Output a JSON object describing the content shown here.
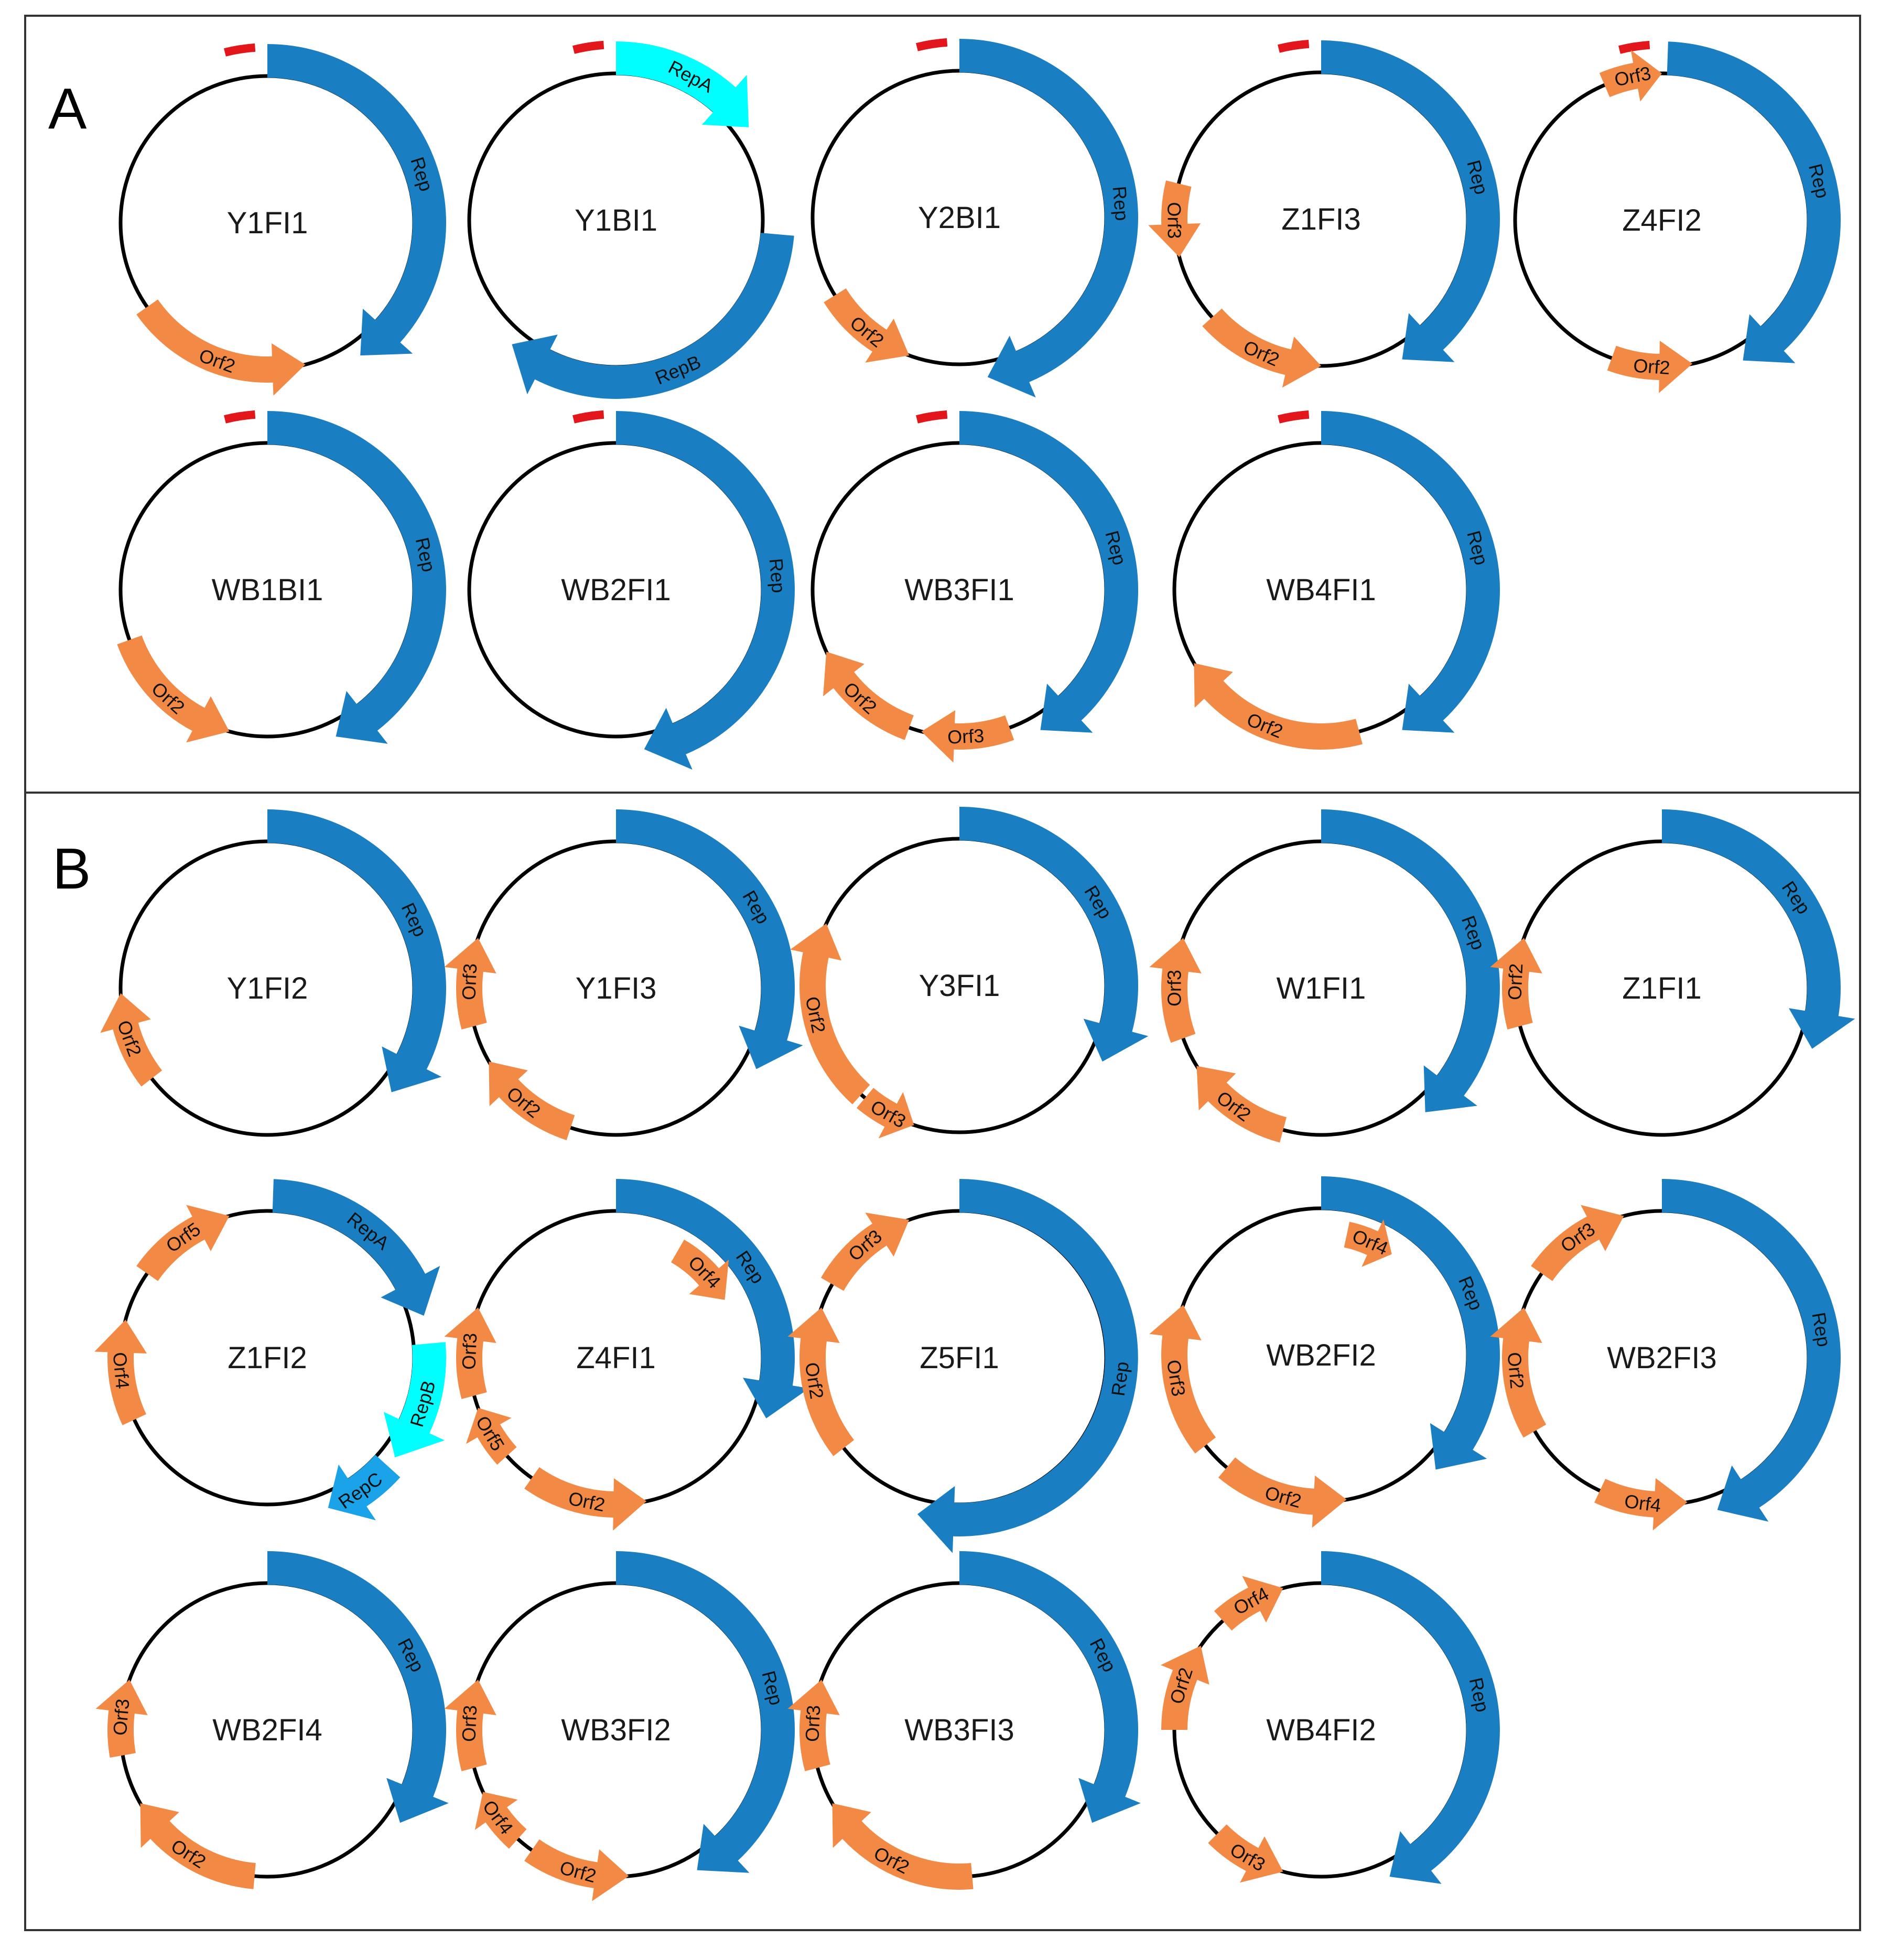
{
  "colors": {
    "rep": "#1a7ec2",
    "rep_light": "#00ffff",
    "rep_c": "#1aa3e8",
    "orf": "#f28a45",
    "origin": "#e3161b",
    "backbone": "#000000",
    "frame": "#333333"
  },
  "panels": [
    {
      "letter": "A",
      "plasmids": [
        {
          "name": "Y1FI1",
          "origin": true,
          "genes": [
            {
              "label": "Rep",
              "kind": "rep",
              "start": 0,
              "end": 145,
              "dir": 1
            },
            {
              "label": "Orf2",
              "kind": "orf",
              "start": 165,
              "end": 235,
              "dir": -1
            }
          ]
        },
        {
          "name": "Y1BI1",
          "origin": true,
          "genes": [
            {
              "label": "RepA",
              "kind": "rep_light",
              "start": 0,
              "end": 55,
              "dir": 1
            },
            {
              "label": "RepB",
              "kind": "rep",
              "start": 95,
              "end": 220,
              "dir": 1
            }
          ]
        },
        {
          "name": "Y2BI1",
          "origin": true,
          "genes": [
            {
              "label": "Rep",
              "kind": "rep",
              "start": 0,
              "end": 170,
              "dir": 1
            },
            {
              "label": "Orf2",
              "kind": "orf",
              "start": 200,
              "end": 238,
              "dir": -1
            }
          ]
        },
        {
          "name": "Z1FI3",
          "origin": true,
          "genes": [
            {
              "label": "Rep",
              "kind": "rep",
              "start": 0,
              "end": 150,
              "dir": 1
            },
            {
              "label": "Orf2",
              "kind": "orf",
              "start": 180,
              "end": 228,
              "dir": -1
            },
            {
              "label": "Orf3",
              "kind": "orf",
              "start": 255,
              "end": 284,
              "dir": -1
            }
          ]
        },
        {
          "name": "Z4FI2",
          "origin": true,
          "genes": [
            {
              "label": "Orf3",
              "kind": "orf",
              "start": 337,
              "end": 360,
              "dir": 1
            },
            {
              "label": "Rep",
              "kind": "rep",
              "start": 2,
              "end": 150,
              "dir": 1
            },
            {
              "label": "Orf2",
              "kind": "orf",
              "start": 168,
              "end": 200,
              "dir": -1
            }
          ]
        },
        {
          "name": "WB1BI1",
          "origin": true,
          "genes": [
            {
              "label": "Rep",
              "kind": "rep",
              "start": 0,
              "end": 155,
              "dir": 1
            },
            {
              "label": "Orf2",
              "kind": "orf",
              "start": 195,
              "end": 250,
              "dir": -1
            }
          ]
        },
        {
          "name": "WB2FI1",
          "origin": true,
          "genes": [
            {
              "label": "Rep",
              "kind": "rep",
              "start": 0,
              "end": 170,
              "dir": 1
            }
          ]
        },
        {
          "name": "WB3FI1",
          "origin": true,
          "genes": [
            {
              "label": "Rep",
              "kind": "rep",
              "start": 0,
              "end": 150,
              "dir": 1
            },
            {
              "label": "Orf3",
              "kind": "orf",
              "start": 160,
              "end": 195,
              "dir": 1
            },
            {
              "label": "Orf2",
              "kind": "orf",
              "start": 200,
              "end": 245,
              "dir": 1
            }
          ]
        },
        {
          "name": "WB4FI1",
          "origin": true,
          "genes": [
            {
              "label": "Rep",
              "kind": "rep",
              "start": 0,
              "end": 150,
              "dir": 1
            },
            {
              "label": "Orf2",
              "kind": "orf",
              "start": 165,
              "end": 240,
              "dir": 1
            }
          ]
        }
      ]
    },
    {
      "letter": "B",
      "plasmids": [
        {
          "name": "Y1FI2",
          "origin": false,
          "genes": [
            {
              "label": "Rep",
              "kind": "rep",
              "start": 0,
              "end": 130,
              "dir": 1
            },
            {
              "label": "Orf2",
              "kind": "orf",
              "start": 232,
              "end": 268,
              "dir": 1
            }
          ]
        },
        {
          "name": "Y1FI3",
          "origin": false,
          "genes": [
            {
              "label": "Rep",
              "kind": "rep",
              "start": 0,
              "end": 120,
              "dir": 1
            },
            {
              "label": "Orf2",
              "kind": "orf",
              "start": 198,
              "end": 240,
              "dir": 1
            },
            {
              "label": "Orf3",
              "kind": "orf",
              "start": 255,
              "end": 290,
              "dir": 1
            }
          ]
        },
        {
          "name": "Y3FI1",
          "origin": false,
          "genes": [
            {
              "label": "Rep",
              "kind": "rep",
              "start": 0,
              "end": 118,
              "dir": 1
            },
            {
              "label": "Orf3",
              "kind": "orf",
              "start": 198,
              "end": 220,
              "dir": -1
            },
            {
              "label": "Orf2",
              "kind": "orf",
              "start": 222,
              "end": 295,
              "dir": 1
            }
          ]
        },
        {
          "name": "W1FI1",
          "origin": false,
          "genes": [
            {
              "label": "Rep",
              "kind": "rep",
              "start": 0,
              "end": 140,
              "dir": 1
            },
            {
              "label": "Orf2",
              "kind": "orf",
              "start": 195,
              "end": 238,
              "dir": 1
            },
            {
              "label": "Orf3",
              "kind": "orf",
              "start": 250,
              "end": 290,
              "dir": 1
            }
          ]
        },
        {
          "name": "Z1FI1",
          "origin": false,
          "genes": [
            {
              "label": "Rep",
              "kind": "rep",
              "start": 0,
              "end": 112,
              "dir": 1
            },
            {
              "label": "Orf2",
              "kind": "orf",
              "start": 255,
              "end": 290,
              "dir": 1
            }
          ]
        },
        {
          "name": "Z1FI2",
          "origin": false,
          "genes": [
            {
              "label": "RepA",
              "kind": "rep",
              "start": 2,
              "end": 75,
              "dir": 1
            },
            {
              "label": "RepB",
              "kind": "rep_light",
              "start": 85,
              "end": 128,
              "dir": 1
            },
            {
              "label": "RepC",
              "kind": "rep_c",
              "start": 132,
              "end": 158,
              "dir": 1
            },
            {
              "label": "Orf4",
              "kind": "orf",
              "start": 245,
              "end": 285,
              "dir": 1
            },
            {
              "label": "Orf5",
              "kind": "orf",
              "start": 305,
              "end": 345,
              "dir": 1
            }
          ]
        },
        {
          "name": "Z4FI1",
          "origin": false,
          "genes": [
            {
              "label": "Rep",
              "kind": "rep",
              "start": 0,
              "end": 112,
              "dir": 1
            },
            {
              "label": "Orf4",
              "kind": "orf",
              "start": 30,
              "end": 62,
              "dir": 1,
              "inner": true
            },
            {
              "label": "Orf2",
              "kind": "orf",
              "start": 168,
              "end": 215,
              "dir": -1
            },
            {
              "label": "Orf5",
              "kind": "orf",
              "start": 228,
              "end": 250,
              "dir": 1
            },
            {
              "label": "Orf3",
              "kind": "orf",
              "start": 255,
              "end": 290,
              "dir": 1
            }
          ]
        },
        {
          "name": "Z5FI1",
          "origin": false,
          "genes": [
            {
              "label": "Rep",
              "kind": "rep",
              "start": 0,
              "end": 195,
              "dir": 1
            },
            {
              "label": "Orf2",
              "kind": "orf",
              "start": 232,
              "end": 290,
              "dir": 1
            },
            {
              "label": "Orf3",
              "kind": "orf",
              "start": 300,
              "end": 340,
              "dir": 1
            }
          ]
        },
        {
          "name": "WB2FI2",
          "origin": false,
          "genes": [
            {
              "label": "Rep",
              "kind": "rep",
              "start": 0,
              "end": 135,
              "dir": 1
            },
            {
              "label": "Orf4",
              "kind": "orf",
              "start": 12,
              "end": 35,
              "dir": 1,
              "inner": true
            },
            {
              "label": "Orf2",
              "kind": "orf",
              "start": 170,
              "end": 220,
              "dir": -1
            },
            {
              "label": "Orf3",
              "kind": "orf",
              "start": 232,
              "end": 290,
              "dir": 1
            }
          ]
        },
        {
          "name": "WB2FI3",
          "origin": false,
          "genes": [
            {
              "label": "Rep",
              "kind": "rep",
              "start": 0,
              "end": 160,
              "dir": 1
            },
            {
              "label": "Orf4",
              "kind": "orf",
              "start": 170,
              "end": 205,
              "dir": -1
            },
            {
              "label": "Orf2",
              "kind": "orf",
              "start": 240,
              "end": 290,
              "dir": 1
            },
            {
              "label": "Orf3",
              "kind": "orf",
              "start": 305,
              "end": 345,
              "dir": 1
            }
          ]
        },
        {
          "name": "WB2FI4",
          "origin": false,
          "genes": [
            {
              "label": "Rep",
              "kind": "rep",
              "start": 0,
              "end": 125,
              "dir": 1
            },
            {
              "label": "Orf2",
              "kind": "orf",
              "start": 185,
              "end": 240,
              "dir": 1
            },
            {
              "label": "Orf3",
              "kind": "orf",
              "start": 260,
              "end": 290,
              "dir": 1
            }
          ]
        },
        {
          "name": "WB3FI2",
          "origin": false,
          "genes": [
            {
              "label": "Rep",
              "kind": "rep",
              "start": 0,
              "end": 150,
              "dir": 1
            },
            {
              "label": "Orf2",
              "kind": "orf",
              "start": 175,
              "end": 215,
              "dir": -1
            },
            {
              "label": "Orf4",
              "kind": "orf",
              "start": 222,
              "end": 245,
              "dir": 1
            },
            {
              "label": "Orf3",
              "kind": "orf",
              "start": 255,
              "end": 290,
              "dir": 1
            }
          ]
        },
        {
          "name": "WB3FI3",
          "origin": false,
          "genes": [
            {
              "label": "Rep",
              "kind": "rep",
              "start": 0,
              "end": 125,
              "dir": 1
            },
            {
              "label": "Orf2",
              "kind": "orf",
              "start": 175,
              "end": 240,
              "dir": 1
            },
            {
              "label": "Orf3",
              "kind": "orf",
              "start": 255,
              "end": 290,
              "dir": 1
            }
          ]
        },
        {
          "name": "WB4FI2",
          "origin": false,
          "genes": [
            {
              "label": "Rep",
              "kind": "rep",
              "start": 0,
              "end": 155,
              "dir": 1
            },
            {
              "label": "Orf3",
              "kind": "orf",
              "start": 195,
              "end": 225,
              "dir": -1
            },
            {
              "label": "Orf2",
              "kind": "orf",
              "start": 270,
              "end": 305,
              "dir": 1
            },
            {
              "label": "Orf4",
              "kind": "orf",
              "start": 318,
              "end": 345,
              "dir": 1
            }
          ]
        }
      ]
    }
  ]
}
